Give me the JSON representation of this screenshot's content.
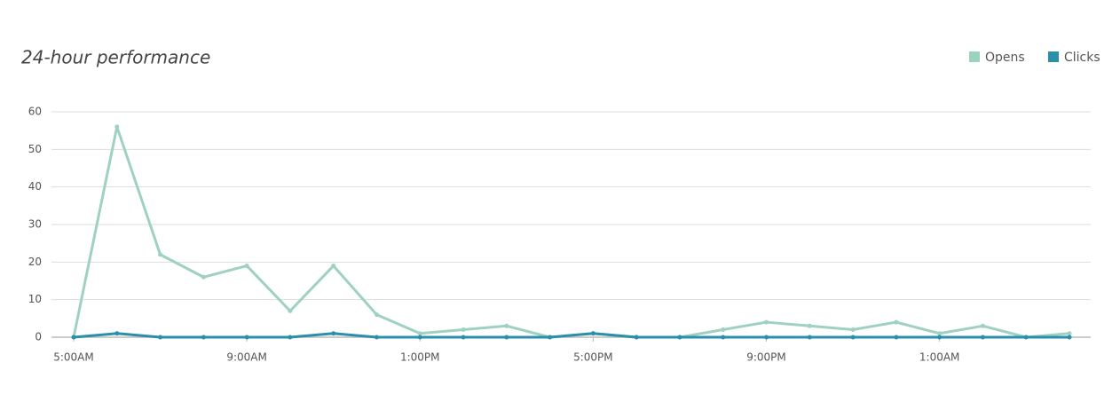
{
  "chart_data": {
    "type": "line",
    "title": "24-hour performance",
    "categories": [
      "5:00AM",
      null,
      null,
      null,
      "9:00AM",
      null,
      null,
      null,
      "1:00PM",
      null,
      null,
      null,
      "5:00PM",
      null,
      null,
      null,
      "9:00PM",
      null,
      null,
      null,
      "1:00AM",
      null,
      null,
      null
    ],
    "series": [
      {
        "name": "Opens",
        "color": "#9fd1c2",
        "values": [
          0,
          56,
          22,
          16,
          19,
          7,
          19,
          6,
          1,
          2,
          3,
          0,
          1,
          0,
          0,
          2,
          4,
          3,
          2,
          4,
          1,
          3,
          0,
          1
        ]
      },
      {
        "name": "Clicks",
        "color": "#2b8fab",
        "values": [
          0,
          1,
          0,
          0,
          0,
          0,
          1,
          0,
          0,
          0,
          0,
          0,
          1,
          0,
          0,
          0,
          0,
          0,
          0,
          0,
          0,
          0,
          0,
          0
        ]
      }
    ],
    "ylim": [
      0,
      60
    ],
    "yticks": [
      0,
      10,
      20,
      30,
      40,
      50,
      60
    ],
    "grid": true,
    "legend": "top-right"
  }
}
